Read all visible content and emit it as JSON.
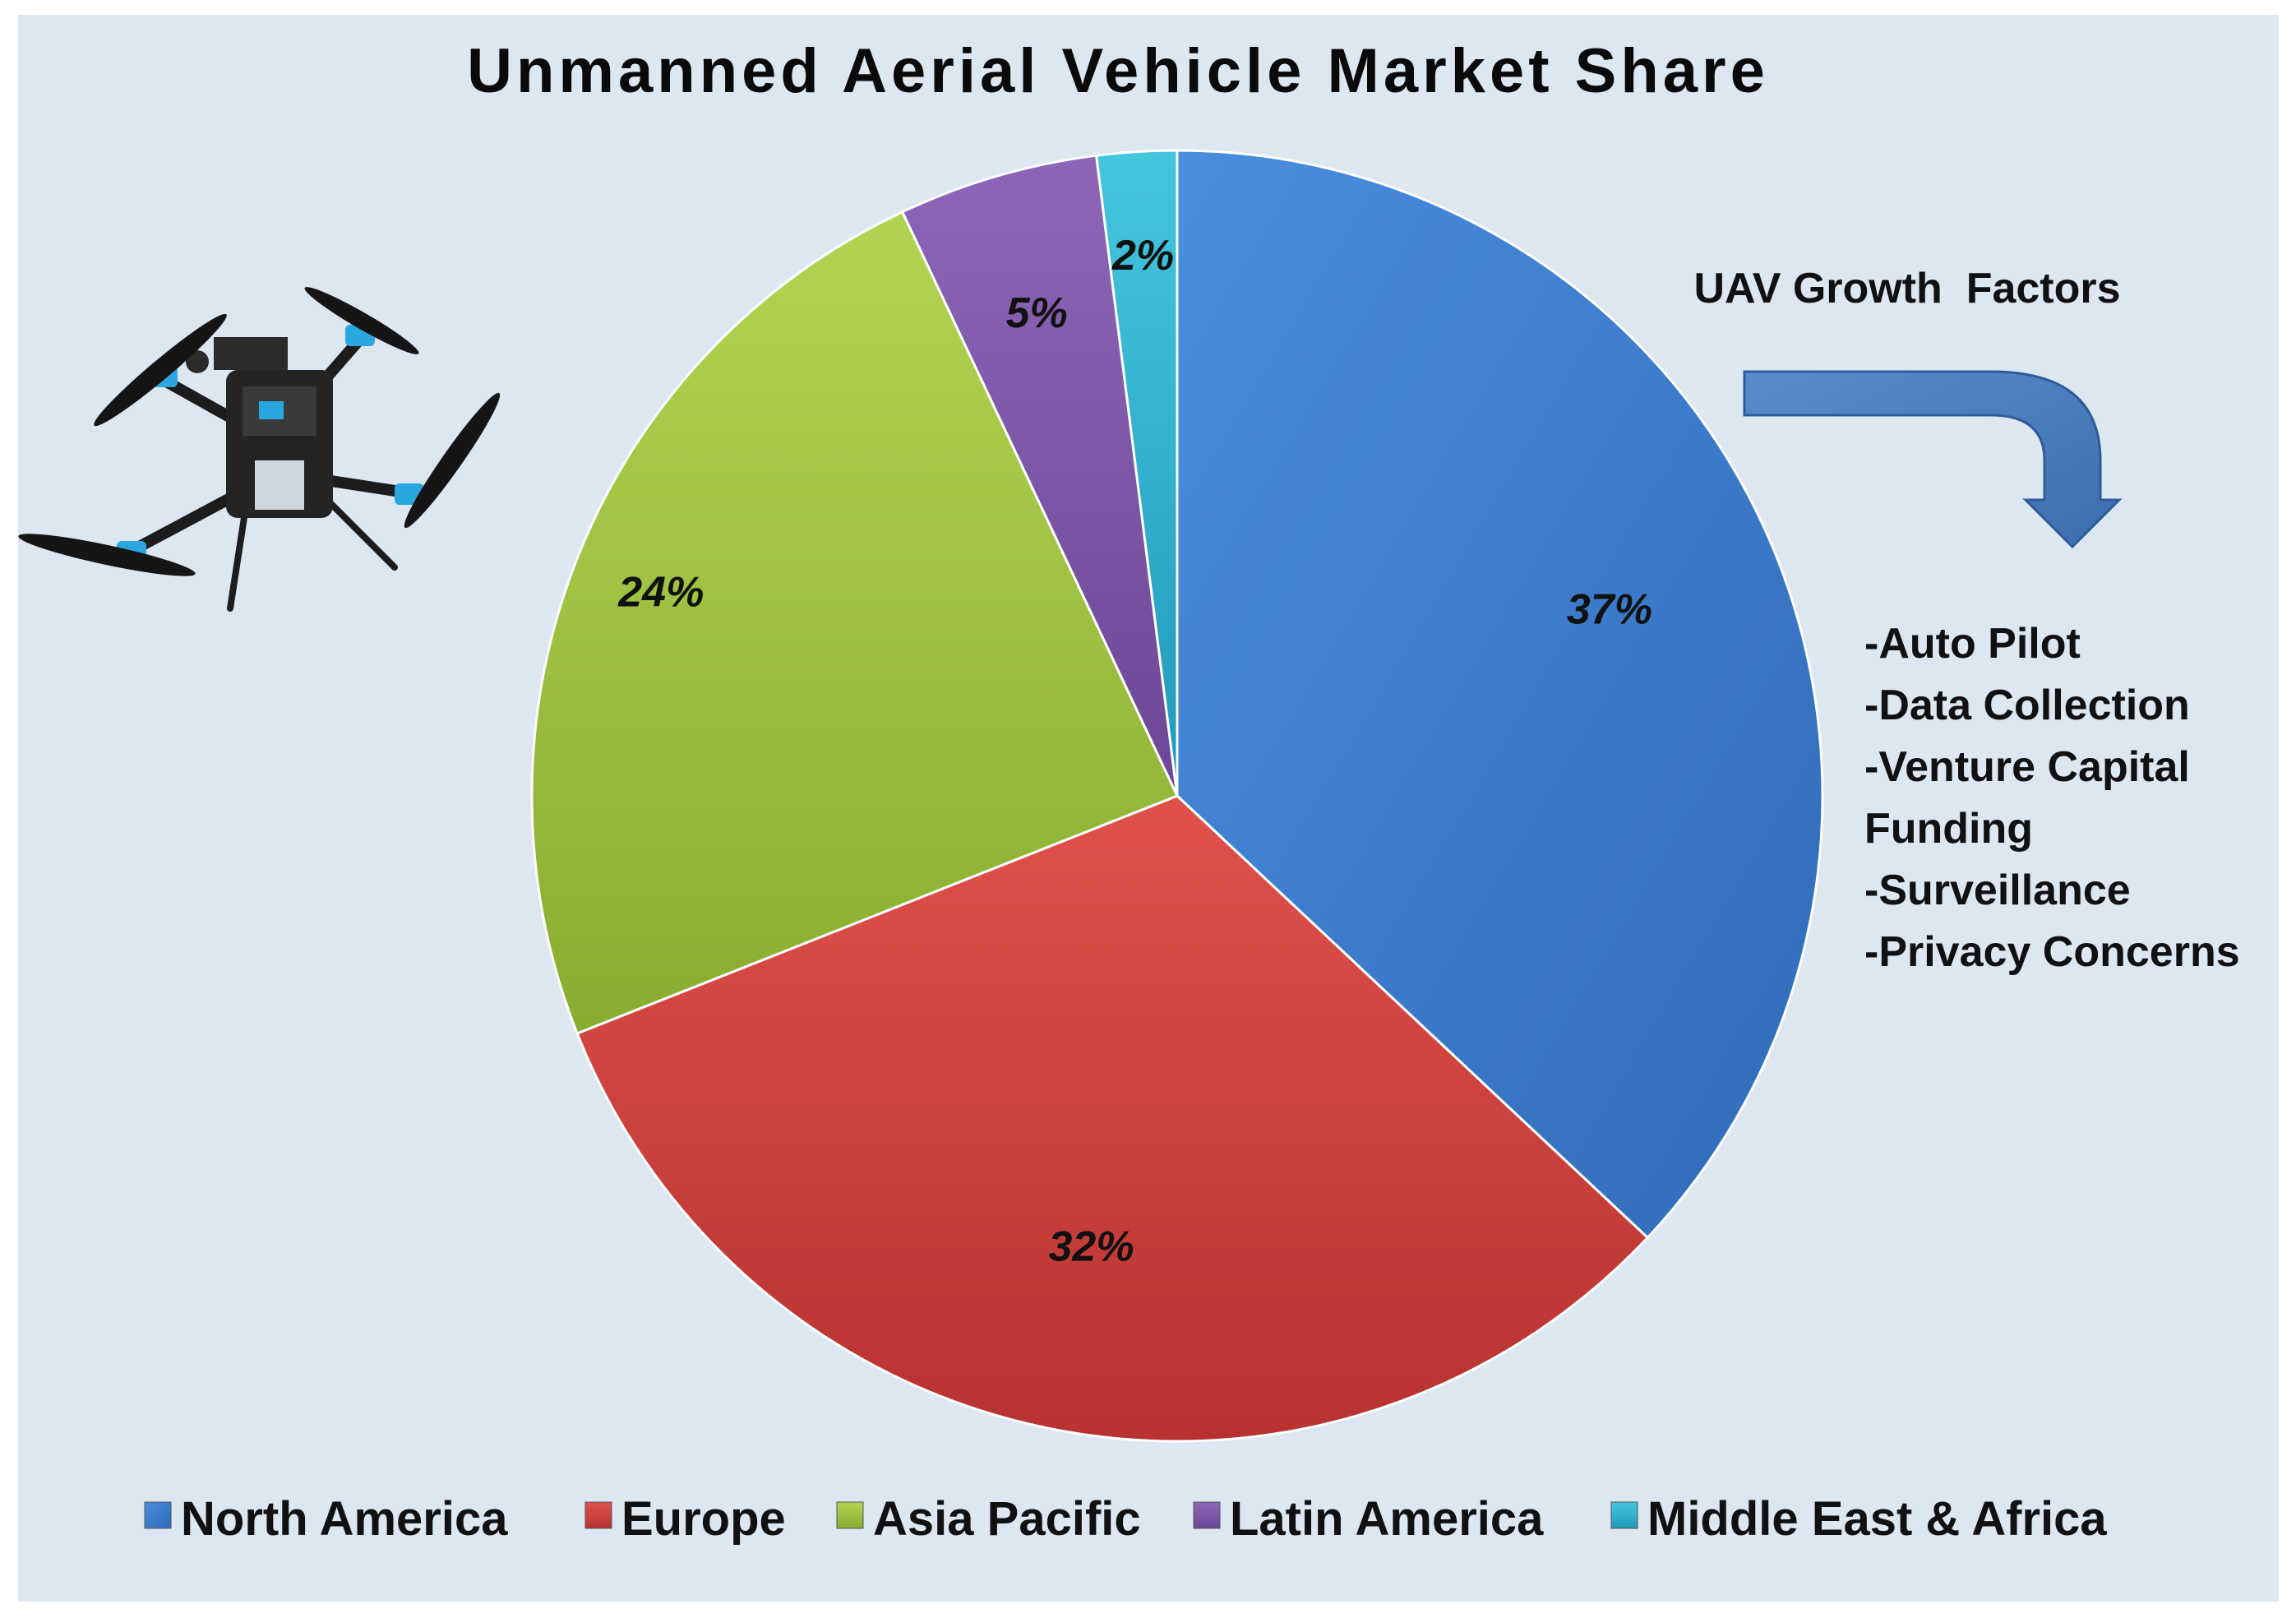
{
  "chart_data": {
    "type": "pie",
    "title": "Unmanned Aerial Vehicle Market Share",
    "categories": [
      "North America",
      "Europe",
      "Asia Pacific",
      "Latin America",
      "Middle East & Africa"
    ],
    "values": [
      37,
      32,
      24,
      5,
      2
    ],
    "value_labels": [
      "37%",
      "32%",
      "24%",
      "5%",
      "2%"
    ],
    "colors": [
      "#3f7fd0",
      "#d4403c",
      "#9cc13e",
      "#7e56a8",
      "#2fb4d0"
    ],
    "legend_position": "bottom",
    "start_angle": "12 o'clock, clockwise"
  },
  "annotation": {
    "heading": "UAV Growth  Factors",
    "factors": [
      "-Auto Pilot",
      "-Data Collection",
      "-Venture Capital",
      "Funding",
      "-Surveillance",
      "-Privacy Concerns"
    ]
  },
  "colors": {
    "background": "#dde7f2",
    "arrow": "#4a7bc0"
  },
  "icons": {
    "drone": "quadcopter-drone-icon",
    "arrow": "curved-down-arrow-icon"
  }
}
